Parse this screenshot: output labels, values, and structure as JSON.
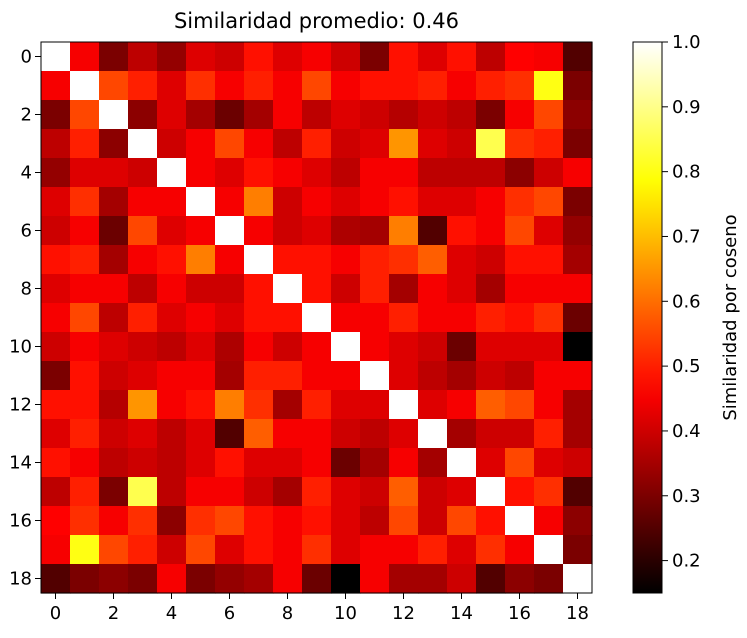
{
  "chart_data": {
    "type": "heatmap",
    "title": "Similaridad promedio: 0.46",
    "xlabel": "",
    "ylabel": "",
    "colormap": "hot",
    "colorbar": {
      "label": "Similaridad por coseno",
      "vmin": 0.15,
      "vmax": 1.0,
      "ticks": [
        0.2,
        0.3,
        0.4,
        0.5,
        0.6,
        0.7,
        0.8,
        0.9,
        1.0
      ],
      "tick_labels": [
        "0.2",
        "0.3",
        "0.4",
        "0.5",
        "0.6",
        "0.7",
        "0.8",
        "0.9",
        "1.0"
      ]
    },
    "x_ticks": [
      0,
      2,
      4,
      6,
      8,
      10,
      12,
      14,
      16,
      18
    ],
    "y_ticks": [
      0,
      2,
      4,
      6,
      8,
      10,
      12,
      14,
      16,
      18
    ],
    "x_tick_labels": [
      "0",
      "2",
      "4",
      "6",
      "8",
      "10",
      "12",
      "14",
      "16",
      "18"
    ],
    "y_tick_labels": [
      "0",
      "2",
      "4",
      "6",
      "8",
      "10",
      "12",
      "14",
      "16",
      "18"
    ],
    "size": 19,
    "matrix": [
      [
        1.0,
        0.45,
        0.3,
        0.38,
        0.33,
        0.42,
        0.4,
        0.48,
        0.42,
        0.45,
        0.4,
        0.3,
        0.48,
        0.42,
        0.48,
        0.38,
        0.46,
        0.45,
        0.25
      ],
      [
        0.45,
        1.0,
        0.55,
        0.5,
        0.42,
        0.52,
        0.45,
        0.5,
        0.45,
        0.55,
        0.45,
        0.48,
        0.48,
        0.5,
        0.45,
        0.5,
        0.52,
        0.8,
        0.3
      ],
      [
        0.3,
        0.55,
        1.0,
        0.32,
        0.42,
        0.35,
        0.28,
        0.35,
        0.45,
        0.38,
        0.42,
        0.4,
        0.37,
        0.4,
        0.38,
        0.3,
        0.45,
        0.55,
        0.32
      ],
      [
        0.38,
        0.5,
        0.32,
        1.0,
        0.4,
        0.45,
        0.55,
        0.45,
        0.38,
        0.5,
        0.4,
        0.42,
        0.65,
        0.42,
        0.4,
        0.85,
        0.52,
        0.5,
        0.3
      ],
      [
        0.33,
        0.42,
        0.42,
        0.4,
        1.0,
        0.45,
        0.42,
        0.48,
        0.45,
        0.42,
        0.38,
        0.45,
        0.45,
        0.38,
        0.38,
        0.38,
        0.32,
        0.4,
        0.45
      ],
      [
        0.42,
        0.52,
        0.35,
        0.45,
        0.45,
        1.0,
        0.45,
        0.62,
        0.4,
        0.45,
        0.42,
        0.45,
        0.48,
        0.42,
        0.42,
        0.45,
        0.52,
        0.55,
        0.3
      ],
      [
        0.4,
        0.45,
        0.28,
        0.55,
        0.42,
        0.45,
        1.0,
        0.45,
        0.4,
        0.42,
        0.36,
        0.35,
        0.62,
        0.25,
        0.48,
        0.45,
        0.55,
        0.42,
        0.33
      ],
      [
        0.48,
        0.5,
        0.35,
        0.45,
        0.48,
        0.62,
        0.45,
        1.0,
        0.48,
        0.48,
        0.45,
        0.5,
        0.52,
        0.58,
        0.42,
        0.4,
        0.48,
        0.48,
        0.35
      ],
      [
        0.42,
        0.45,
        0.45,
        0.38,
        0.45,
        0.4,
        0.4,
        0.48,
        1.0,
        0.48,
        0.4,
        0.5,
        0.35,
        0.45,
        0.42,
        0.35,
        0.45,
        0.45,
        0.45
      ],
      [
        0.45,
        0.55,
        0.38,
        0.5,
        0.42,
        0.45,
        0.42,
        0.48,
        0.48,
        1.0,
        0.45,
        0.45,
        0.5,
        0.45,
        0.45,
        0.5,
        0.48,
        0.52,
        0.28
      ],
      [
        0.4,
        0.45,
        0.42,
        0.4,
        0.38,
        0.42,
        0.36,
        0.45,
        0.4,
        0.45,
        1.0,
        0.45,
        0.42,
        0.4,
        0.28,
        0.42,
        0.42,
        0.42,
        0.15
      ],
      [
        0.3,
        0.48,
        0.4,
        0.42,
        0.45,
        0.45,
        0.35,
        0.5,
        0.5,
        0.45,
        0.45,
        1.0,
        0.42,
        0.38,
        0.35,
        0.4,
        0.38,
        0.45,
        0.45
      ],
      [
        0.48,
        0.48,
        0.37,
        0.65,
        0.45,
        0.48,
        0.62,
        0.52,
        0.35,
        0.5,
        0.42,
        0.42,
        1.0,
        0.42,
        0.45,
        0.58,
        0.55,
        0.45,
        0.35
      ],
      [
        0.42,
        0.5,
        0.4,
        0.42,
        0.38,
        0.42,
        0.25,
        0.58,
        0.45,
        0.45,
        0.4,
        0.38,
        0.42,
        1.0,
        0.35,
        0.4,
        0.4,
        0.5,
        0.35
      ],
      [
        0.48,
        0.45,
        0.38,
        0.4,
        0.38,
        0.42,
        0.48,
        0.42,
        0.42,
        0.45,
        0.28,
        0.35,
        0.45,
        0.35,
        1.0,
        0.42,
        0.55,
        0.42,
        0.4
      ],
      [
        0.38,
        0.5,
        0.3,
        0.85,
        0.38,
        0.45,
        0.45,
        0.4,
        0.35,
        0.5,
        0.42,
        0.4,
        0.58,
        0.4,
        0.42,
        1.0,
        0.48,
        0.52,
        0.25
      ],
      [
        0.46,
        0.52,
        0.45,
        0.52,
        0.32,
        0.52,
        0.55,
        0.48,
        0.45,
        0.48,
        0.42,
        0.38,
        0.55,
        0.4,
        0.55,
        0.48,
        1.0,
        0.45,
        0.32
      ],
      [
        0.45,
        0.8,
        0.55,
        0.5,
        0.4,
        0.55,
        0.42,
        0.48,
        0.45,
        0.52,
        0.42,
        0.45,
        0.45,
        0.5,
        0.42,
        0.52,
        0.45,
        1.0,
        0.3
      ],
      [
        0.25,
        0.3,
        0.32,
        0.3,
        0.45,
        0.3,
        0.33,
        0.35,
        0.45,
        0.28,
        0.15,
        0.45,
        0.35,
        0.35,
        0.4,
        0.25,
        0.32,
        0.3,
        1.0
      ]
    ]
  }
}
